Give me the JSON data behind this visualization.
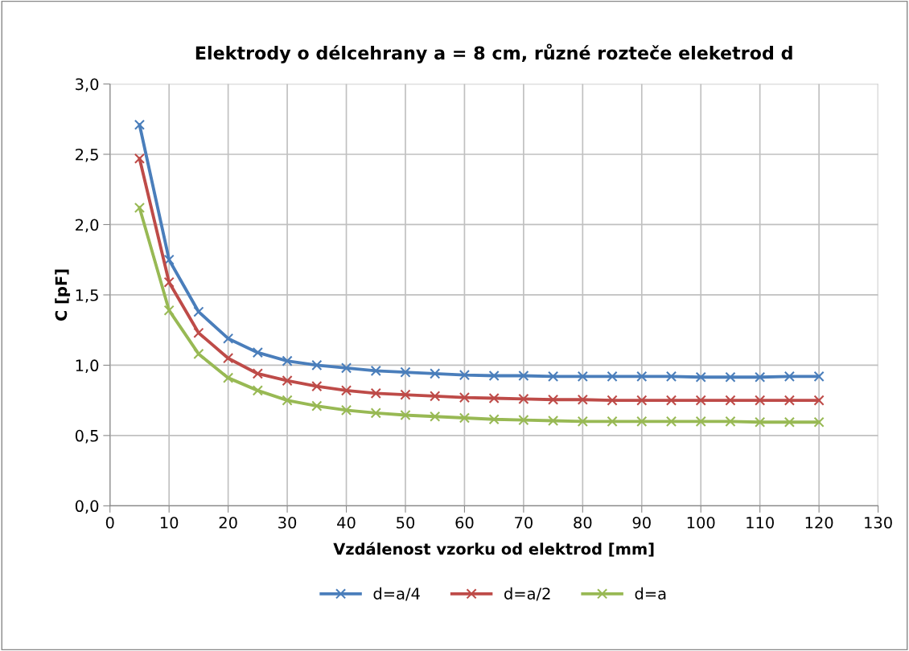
{
  "chart_data": {
    "type": "line",
    "title": "Elektrody o délcehrany a = 8 cm, různé rozteče eleketrod d",
    "xlabel": "Vzdálenost vzorku od elektrod [mm]",
    "ylabel": "C [pF]",
    "x": [
      5,
      10,
      15,
      20,
      25,
      30,
      35,
      40,
      45,
      50,
      55,
      60,
      65,
      70,
      75,
      80,
      85,
      90,
      95,
      100,
      105,
      110,
      115,
      120
    ],
    "series": [
      {
        "name": "d=a/4",
        "color": "#4a7ebb",
        "values": [
          2.71,
          1.75,
          1.38,
          1.19,
          1.09,
          1.03,
          1.0,
          0.98,
          0.96,
          0.95,
          0.94,
          0.93,
          0.925,
          0.925,
          0.92,
          0.92,
          0.92,
          0.92,
          0.92,
          0.915,
          0.915,
          0.915,
          0.92,
          0.92
        ]
      },
      {
        "name": "d=a/2",
        "color": "#be4b48",
        "values": [
          2.47,
          1.59,
          1.23,
          1.05,
          0.94,
          0.89,
          0.85,
          0.82,
          0.8,
          0.79,
          0.78,
          0.77,
          0.765,
          0.76,
          0.755,
          0.755,
          0.75,
          0.75,
          0.75,
          0.75,
          0.75,
          0.75,
          0.75,
          0.75
        ]
      },
      {
        "name": "d=a",
        "color": "#98b954",
        "values": [
          2.12,
          1.39,
          1.08,
          0.91,
          0.82,
          0.75,
          0.71,
          0.68,
          0.66,
          0.645,
          0.635,
          0.625,
          0.615,
          0.61,
          0.605,
          0.6,
          0.6,
          0.6,
          0.6,
          0.6,
          0.6,
          0.595,
          0.595,
          0.595
        ]
      }
    ],
    "xlim": [
      0,
      130
    ],
    "xticks": [
      0,
      10,
      20,
      30,
      40,
      50,
      60,
      70,
      80,
      90,
      100,
      110,
      120,
      130
    ],
    "ylim": [
      0,
      3
    ],
    "yticks": [
      {
        "value": 0,
        "label": "0,0"
      },
      {
        "value": 0.5,
        "label": "0,5"
      },
      {
        "value": 1,
        "label": "1,0"
      },
      {
        "value": 1.5,
        "label": "1,5"
      },
      {
        "value": 2,
        "label": "2,0"
      },
      {
        "value": 2.5,
        "label": "2,5"
      },
      {
        "value": 3,
        "label": "3,0"
      }
    ],
    "grid": true,
    "legend": "bottom",
    "marker": "cross",
    "line_style": "solid"
  }
}
